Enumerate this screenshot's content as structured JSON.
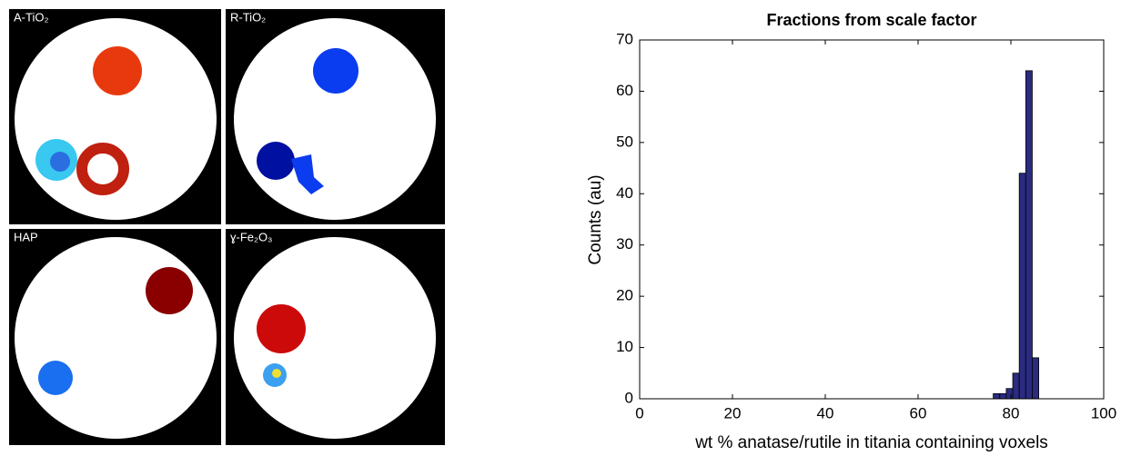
{
  "panels": [
    "A-TiO₂",
    "R-TiO₂",
    "HAP",
    "ɣ-Fe₂O₃"
  ],
  "chart_data": {
    "type": "histogram",
    "title": "Fractions from scale factor",
    "xlabel": "wt % anatase/rutile in titania containing voxels",
    "ylabel": "Counts (au)",
    "bins": [
      76.2,
      77.6,
      79,
      80.4,
      81.8,
      83.2,
      84.6,
      86
    ],
    "values": [
      1,
      1,
      2,
      5,
      44,
      64,
      8
    ],
    "color": "#2b2b80",
    "xlim": [
      0,
      100
    ],
    "xticks": [
      0,
      20,
      40,
      60,
      80,
      100
    ],
    "ylim": [
      0,
      70
    ],
    "yticks": [
      0,
      10,
      20,
      30,
      40,
      50,
      60,
      70
    ]
  }
}
